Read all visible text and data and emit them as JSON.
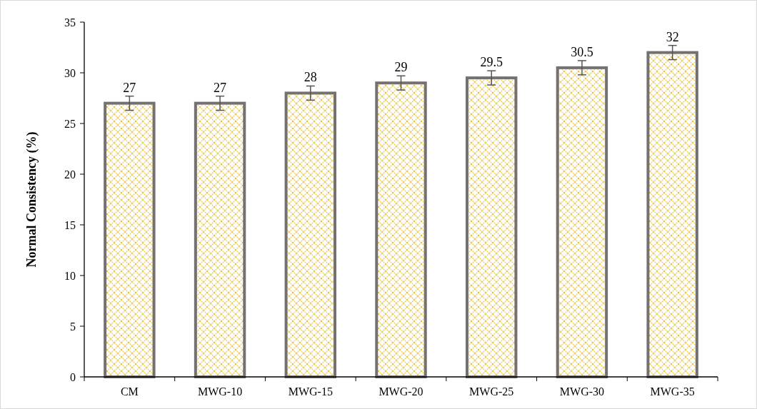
{
  "chart_data": {
    "type": "bar",
    "ylabel": "Normal Consistency (%)",
    "categories": [
      "CM",
      "MWG-10",
      "MWG-15",
      "MWG-20",
      "MWG-25",
      "MWG-30",
      "MWG-35"
    ],
    "values": [
      27,
      27,
      28,
      29,
      29.5,
      30.5,
      32
    ],
    "errors": [
      0.7,
      0.7,
      0.7,
      0.7,
      0.7,
      0.7,
      0.7
    ],
    "color": "#767171",
    "ylim": [
      0,
      35
    ],
    "yticks": [
      0,
      5,
      10,
      15,
      20,
      25,
      30,
      35
    ],
    "data_labels": true,
    "grid": false
  }
}
